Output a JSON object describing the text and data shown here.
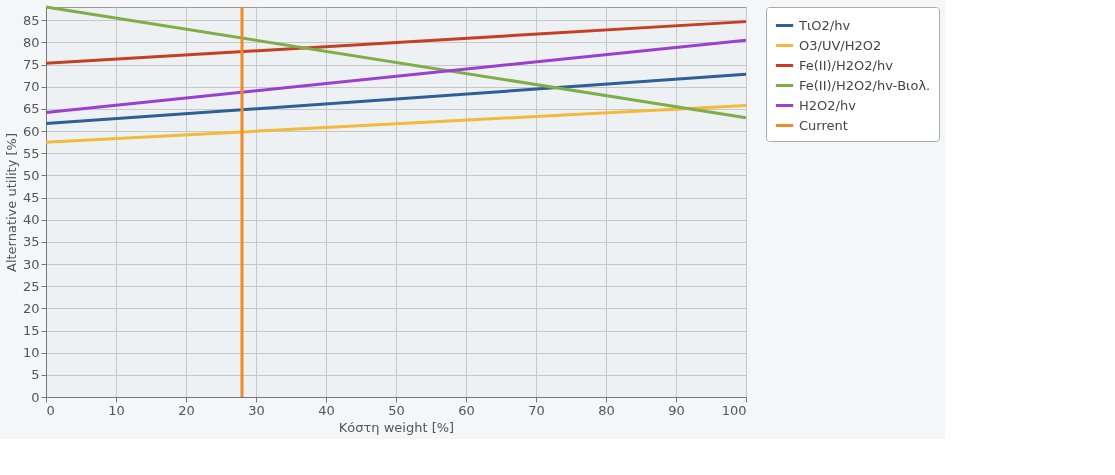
{
  "chart_data": {
    "type": "line",
    "xlabel": "Κόστη weight [%]",
    "ylabel": "Alternative utility [%]",
    "x": [
      0,
      100
    ],
    "xlim": [
      0,
      100
    ],
    "xticks": [
      0,
      10,
      20,
      30,
      40,
      50,
      60,
      70,
      80,
      90,
      100
    ],
    "ylim": [
      0,
      88
    ],
    "yticks": [
      0,
      5,
      10,
      15,
      20,
      25,
      30,
      35,
      40,
      45,
      50,
      55,
      60,
      65,
      70,
      75,
      80,
      85
    ],
    "grid": true,
    "legend": "top right",
    "marker": "none",
    "line_style": "solid",
    "series": [
      {
        "name": "TιO2/hv",
        "color": "#2f5f97",
        "values": [
          61.7,
          72.8
        ]
      },
      {
        "name": "O3/UV/H2O2",
        "color": "#f2b93b",
        "values": [
          57.5,
          65.8
        ]
      },
      {
        "name": "Fe(II)/H2O2/hv",
        "color": "#c63f22",
        "values": [
          75.3,
          84.7
        ]
      },
      {
        "name": "Fe(II)/H2O2/hv-Βιολ.",
        "color": "#7fae48",
        "values": [
          88,
          63
        ]
      },
      {
        "name": "H2O2/hv",
        "color": "#9a3fd0",
        "values": [
          64.2,
          80.5
        ]
      },
      {
        "name": "Current",
        "color": "#ef8a26",
        "type": "line",
        "x": [
          28,
          28
        ],
        "values": [
          0,
          88
        ]
      }
    ]
  }
}
